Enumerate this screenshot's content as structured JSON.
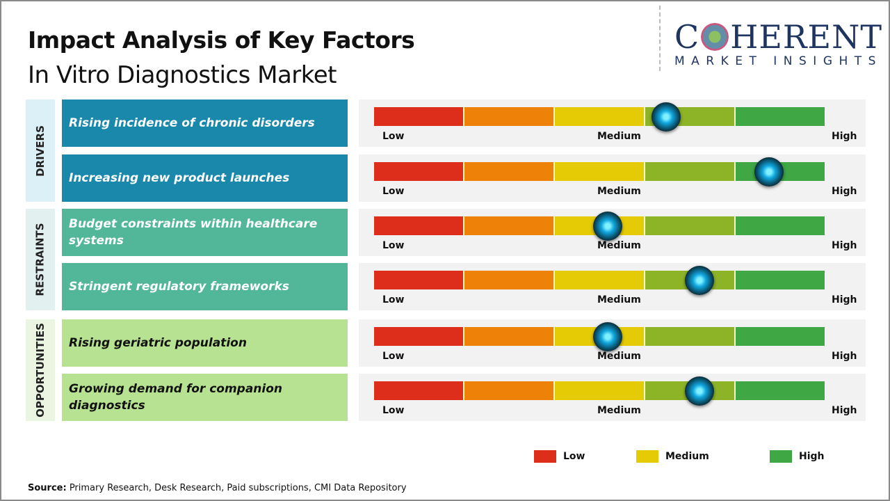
{
  "title": "Impact Analysis of Key Factors",
  "subtitle": "In Vitro Diagnostics Market",
  "logo": {
    "main": "COHERENT",
    "sub": "MARKET INSIGHTS"
  },
  "chart_data": {
    "type": "table",
    "scale_labels": [
      "Low",
      "Medium",
      "High"
    ],
    "scale_colors": [
      "#dd2e1c",
      "#ee8208",
      "#e5cb06",
      "#8db326",
      "#3fa743"
    ],
    "categories": [
      {
        "name": "DRIVERS",
        "color": "#1988ab",
        "bg": "#dcf0f8",
        "text_color": "#ffffff",
        "factors": [
          {
            "label": "Rising incidence of chronic disorders",
            "impact": 0.648
          },
          {
            "label": "Increasing new product launches",
            "impact": 0.877
          }
        ]
      },
      {
        "name": "RESTRAINTS",
        "color": "#52b799",
        "bg": "#e2f0ef",
        "text_color": "#ffffff",
        "factors": [
          {
            "label": "Budget constraints within healthcare systems",
            "impact": 0.519
          },
          {
            "label": "Stringent regulatory  frameworks",
            "impact": 0.722
          }
        ]
      },
      {
        "name": "OPPORTUNITIES",
        "color": "#b7e291",
        "bg": "#eaf6e2",
        "text_color": "#111111",
        "factors": [
          {
            "label": "Rising geriatric  population",
            "impact": 0.519
          },
          {
            "label": "Growing demand for companion diagnostics",
            "impact": 0.722
          }
        ]
      }
    ],
    "legend": [
      {
        "label": "Low",
        "color": "#dd2e1c"
      },
      {
        "label": "Medium",
        "color": "#e5cb06"
      },
      {
        "label": "High",
        "color": "#3fa743"
      }
    ]
  },
  "source": {
    "label": "Source:",
    "text": " Primary Research, Desk Research, Paid subscriptions, CMI Data Repository"
  }
}
